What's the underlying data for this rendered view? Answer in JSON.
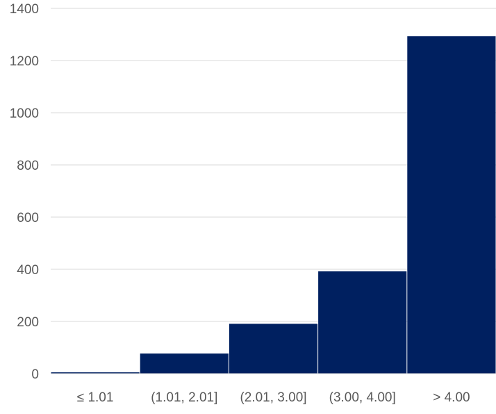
{
  "chart_data": {
    "type": "bar",
    "title": "",
    "xlabel": "",
    "ylabel": "",
    "categories": [
      "≤ 1.01",
      "(1.01, 2.01]",
      "(2.01, 3.00]",
      "(3.00, 4.00]",
      "> 4.00"
    ],
    "values": [
      5,
      77,
      191,
      392,
      1293
    ],
    "ylim": [
      0,
      1400
    ],
    "yticks": [
      0,
      200,
      400,
      600,
      800,
      1000,
      1200,
      1400
    ],
    "grid": true,
    "legend": "none",
    "bar_color": "#002060",
    "grid_color": "#d9d9d9",
    "label_color": "#595959"
  }
}
